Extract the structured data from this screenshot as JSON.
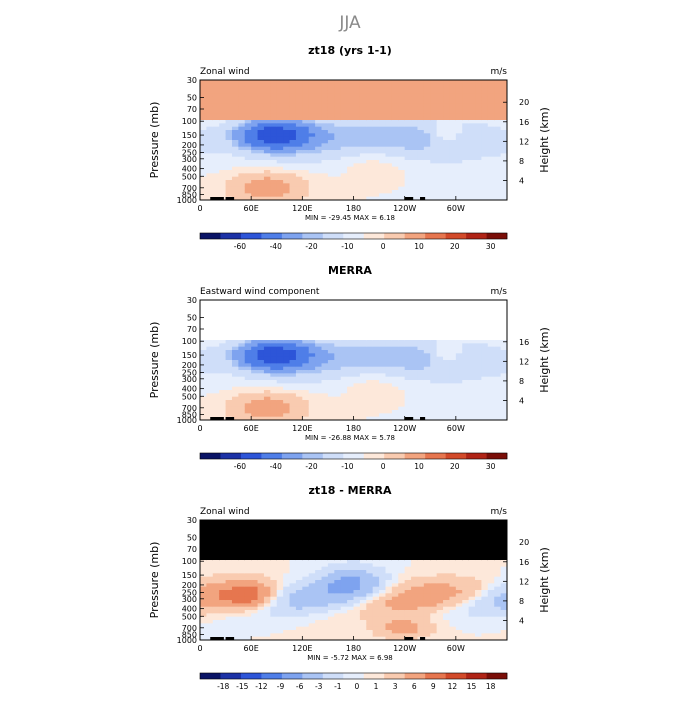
{
  "page_title": "JJA",
  "palettes": {
    "full": [
      "#0a1466",
      "#1c32a6",
      "#2d55d8",
      "#4f7ee8",
      "#7ea3ef",
      "#aac4f4",
      "#cfdef9",
      "#e6eefc",
      "#fde8da",
      "#f9cbb0",
      "#f2a47f",
      "#e6764f",
      "#d24a2a",
      "#b02416",
      "#7a0e08"
    ],
    "diff": [
      "#0a1466",
      "#1c32a6",
      "#2d55d8",
      "#4f7ee8",
      "#7ea3ef",
      "#aac4f4",
      "#cfdef9",
      "#e6eefc",
      "#fde8da",
      "#f9cbb0",
      "#f2a47f",
      "#e6764f",
      "#d24a2a",
      "#b02416",
      "#7a0e08"
    ]
  },
  "chart_data": [
    {
      "type": "heatmap",
      "title": "zt18 (yrs 1-1)",
      "left_label": "Zonal wind",
      "units": "m/s",
      "ylabel": "Pressure (mb)",
      "ylabel_right": "Height (km)",
      "y_ticks": [
        "30",
        "50",
        "70",
        "100",
        "150",
        "200",
        "250",
        "300",
        "400",
        "500",
        "700",
        "850",
        "1000"
      ],
      "y_ticks_right": [
        "20",
        "16",
        "12",
        "8",
        "4"
      ],
      "x_ticks": [
        "0",
        "60E",
        "120E",
        "180",
        "120W",
        "60W"
      ],
      "stats": "MIN = -29.45   MAX =   6.18",
      "colorbar_labels": [
        "-60",
        "-40",
        "-20",
        "-10",
        "0",
        "10",
        "20",
        "30"
      ],
      "palette": "full",
      "levels_shown_from_p": 30,
      "min": -29.45,
      "max": 6.18
    },
    {
      "type": "heatmap",
      "title": "MERRA",
      "left_label": "Eastward wind component",
      "units": "m/s",
      "ylabel": "Pressure (mb)",
      "ylabel_right": "Height (km)",
      "y_ticks": [
        "30",
        "50",
        "70",
        "100",
        "150",
        "200",
        "250",
        "300",
        "400",
        "500",
        "700",
        "850",
        "1000"
      ],
      "y_ticks_right": [
        "16",
        "12",
        "8",
        "4"
      ],
      "x_ticks": [
        "0",
        "60E",
        "120E",
        "180",
        "120W",
        "60W"
      ],
      "stats": "MIN = -26.88   MAX =   5.78",
      "colorbar_labels": [
        "-60",
        "-40",
        "-20",
        "-10",
        "0",
        "10",
        "20",
        "30"
      ],
      "palette": "full",
      "levels_shown_from_p": 100,
      "min": -26.88,
      "max": 5.78
    },
    {
      "type": "heatmap",
      "title": "zt18 - MERRA",
      "left_label": "Zonal wind",
      "units": "m/s",
      "ylabel": "Pressure (mb)",
      "ylabel_right": "Height (km)",
      "y_ticks": [
        "30",
        "50",
        "70",
        "100",
        "150",
        "200",
        "250",
        "300",
        "400",
        "500",
        "700",
        "850",
        "1000"
      ],
      "y_ticks_right": [
        "20",
        "16",
        "12",
        "8",
        "4"
      ],
      "x_ticks": [
        "0",
        "60E",
        "120E",
        "180",
        "120W",
        "60W"
      ],
      "stats": "MIN =  -5.72   MAX =   6.98",
      "colorbar_labels": [
        "-18",
        "-15",
        "-12",
        "-9",
        "-6",
        "-3",
        "-1",
        "0",
        "1",
        "3",
        "6",
        "9",
        "12",
        "15",
        "18"
      ],
      "palette": "diff",
      "levels_shown_from_p": 100,
      "masked_above_p": 100,
      "min": -5.72,
      "max": 6.98
    }
  ]
}
